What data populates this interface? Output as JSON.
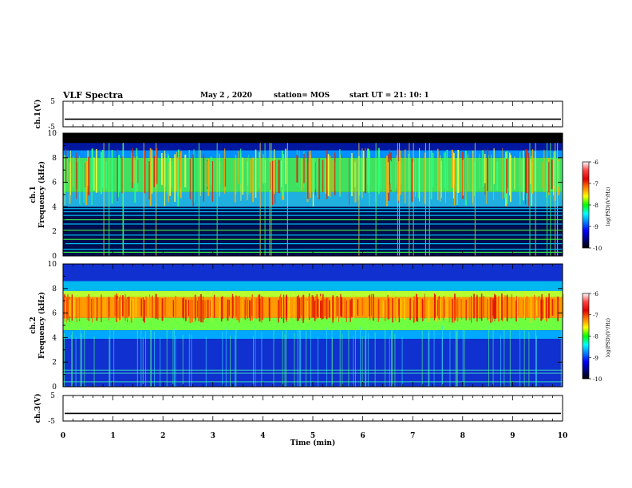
{
  "header": {
    "title": "VLF Spectra",
    "date": "May 2 , 2020",
    "station": "station= MOS",
    "start": "start UT = 21: 10: 1"
  },
  "colorbar": {
    "label": "log(PSD)(V²/Hz)",
    "ticks": [
      "-6",
      "-7",
      "-8",
      "-9",
      "-10"
    ],
    "colors": [
      "#ffffff",
      "#ff4040",
      "#e00000",
      "#ff8000",
      "#ffff00",
      "#00ff00",
      "#00ffff",
      "#0080ff",
      "#0000ff",
      "#000080",
      "#000000"
    ]
  },
  "chart_data": [
    {
      "type": "line",
      "panel": "ch1-waveform",
      "ylabel": "ch.1(V)",
      "ylim": [
        -5,
        5
      ],
      "y_ticks": [
        "5",
        "-5"
      ],
      "x_range": [
        0,
        10
      ],
      "series": [
        {
          "values": [
            -2,
            -2
          ]
        }
      ]
    },
    {
      "type": "heatmap",
      "panel": "ch1-spectrogram",
      "ylabel": "ch.1 Frequency (kHz)",
      "xlim": [
        0,
        10
      ],
      "ylim": [
        0,
        10
      ],
      "y_ticks": [
        "0",
        "2",
        "4",
        "6",
        "8",
        "10"
      ],
      "z_range": [
        -10,
        -6
      ],
      "notes": "emission band about 4-9 kHz, no signal above about 9.2 kHz, narrowband lines below 4 kHz"
    },
    {
      "type": "heatmap",
      "panel": "ch2-spectrogram",
      "ylabel": "ch.2 Frequency (kHz)",
      "xlim": [
        0,
        10
      ],
      "ylim": [
        0,
        10
      ],
      "y_ticks": [
        "0",
        "2",
        "4",
        "6",
        "8",
        "10"
      ],
      "z_range": [
        -10,
        -6
      ],
      "notes": "intense band about 5-8 kHz, low-level noise elsewhere"
    },
    {
      "type": "line",
      "panel": "ch3-waveform",
      "ylabel": "ch.3(V)",
      "ylim": [
        -5,
        5
      ],
      "y_ticks": [
        "5",
        "-5"
      ],
      "x_range": [
        0,
        10
      ],
      "series": [
        {
          "values": [
            -2,
            -2
          ]
        }
      ]
    },
    {
      "type": "axis",
      "xlabel": "Time (min)",
      "x_ticks": [
        "0",
        "1",
        "2",
        "3",
        "4",
        "5",
        "6",
        "7",
        "8",
        "9",
        "10"
      ],
      "xlim": [
        0,
        10
      ]
    }
  ]
}
